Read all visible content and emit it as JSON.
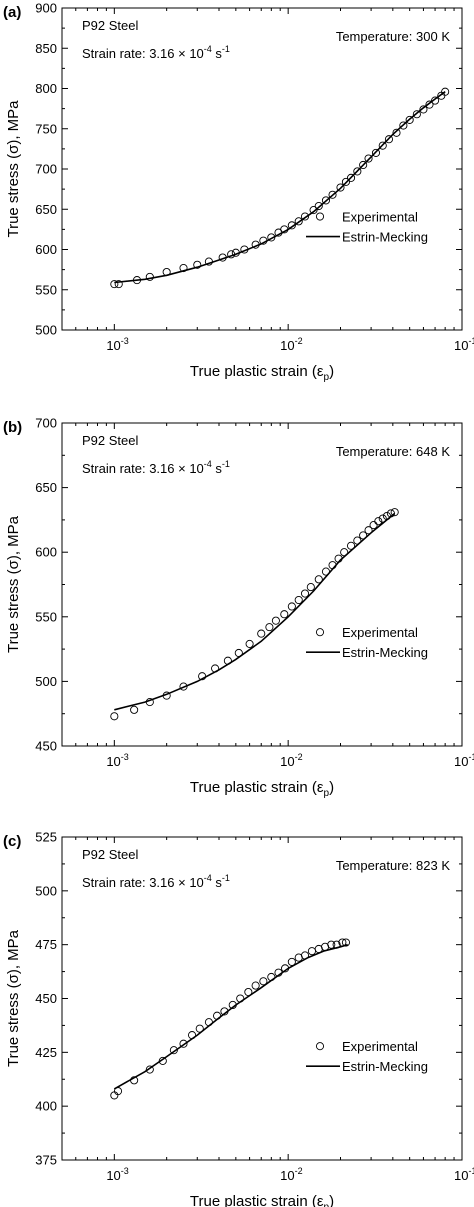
{
  "figure": {
    "panels": [
      {
        "label": "(a)",
        "material": "P92 Steel",
        "rate_prefix": "Strain rate: 3.16 × 10",
        "rate_exp": "-4",
        "rate_unit": " s",
        "rate_unit_exp": "-1",
        "temperature": "Temperature: 300 K",
        "ylabel": "True stress (σ), MPa",
        "xlabel_main": "True plastic strain (ε",
        "xlabel_sub": "p",
        "xlabel_close": ")",
        "y_ticks": [
          "500",
          "550",
          "600",
          "650",
          "700",
          "750",
          "800",
          "850",
          "900"
        ],
        "x_tick_base": "10",
        "x_tick_exps": [
          "-3",
          "-2",
          "-1"
        ],
        "legend_experimental": "Experimental",
        "legend_model": "Estrin-Mecking"
      },
      {
        "label": "(b)",
        "material": "P92 Steel",
        "rate_prefix": "Strain rate: 3.16 × 10",
        "rate_exp": "-4",
        "rate_unit": " s",
        "rate_unit_exp": "-1",
        "temperature": "Temperature: 648 K",
        "ylabel": "True stress (σ), MPa",
        "xlabel_main": "True plastic strain (ε",
        "xlabel_sub": "p",
        "xlabel_close": ")",
        "y_ticks": [
          "450",
          "500",
          "550",
          "600",
          "650",
          "700"
        ],
        "x_tick_base": "10",
        "x_tick_exps": [
          "-3",
          "-2",
          "-1"
        ],
        "legend_experimental": "Experimental",
        "legend_model": "Estrin-Mecking"
      },
      {
        "label": "(c)",
        "material": "P92 Steel",
        "rate_prefix": "Strain rate: 3.16 × 10",
        "rate_exp": "-4",
        "rate_unit": " s",
        "rate_unit_exp": "-1",
        "temperature": "Temperature: 823 K",
        "ylabel": "True stress (σ), MPa",
        "xlabel_main": "True plastic strain (ε",
        "xlabel_sub": "p",
        "xlabel_close": ")",
        "y_ticks": [
          "375",
          "400",
          "425",
          "450",
          "475",
          "500",
          "525"
        ],
        "x_tick_base": "10",
        "x_tick_exps": [
          "-3",
          "-2",
          "-1"
        ],
        "legend_experimental": "Experimental",
        "legend_model": "Estrin-Mecking"
      }
    ]
  },
  "chart_data": [
    {
      "type": "scatter",
      "xscale": "log",
      "xlim": [
        0.0005,
        0.1
      ],
      "ylim": [
        500,
        900
      ],
      "legend_position": "center-right",
      "series": [
        {
          "name": "Experimental",
          "marker": "open-circle",
          "x": [
            0.001,
            0.00106,
            0.00135,
            0.0016,
            0.002,
            0.0025,
            0.003,
            0.0035,
            0.0042,
            0.0047,
            0.005,
            0.0056,
            0.0065,
            0.0072,
            0.008,
            0.0088,
            0.0095,
            0.0105,
            0.0115,
            0.0125,
            0.014,
            0.015,
            0.0165,
            0.018,
            0.02,
            0.0215,
            0.023,
            0.025,
            0.027,
            0.029,
            0.032,
            0.035,
            0.038,
            0.042,
            0.046,
            0.05,
            0.055,
            0.06,
            0.065,
            0.07,
            0.076,
            0.08
          ],
          "y": [
            557,
            557,
            562,
            566,
            572,
            577,
            581,
            585,
            590,
            594,
            596,
            600,
            606,
            611,
            615,
            621,
            625,
            630,
            635,
            641,
            649,
            654,
            661,
            668,
            677,
            684,
            689,
            697,
            705,
            713,
            720,
            729,
            737,
            745,
            754,
            761,
            768,
            774,
            780,
            785,
            791,
            796
          ]
        },
        {
          "name": "Estrin-Mecking",
          "marker": "line",
          "x": [
            0.001,
            0.0015,
            0.002,
            0.003,
            0.004,
            0.005,
            0.007,
            0.01,
            0.014,
            0.02,
            0.03,
            0.04,
            0.05,
            0.06,
            0.07,
            0.08
          ],
          "y": [
            559,
            563,
            568,
            578,
            587,
            594,
            607,
            625,
            647,
            676,
            715,
            743,
            762,
            776,
            787,
            796
          ]
        }
      ]
    },
    {
      "type": "scatter",
      "xscale": "log",
      "xlim": [
        0.0005,
        0.1
      ],
      "ylim": [
        450,
        700
      ],
      "legend_position": "center-right",
      "series": [
        {
          "name": "Experimental",
          "marker": "open-circle",
          "x": [
            0.001,
            0.0013,
            0.0016,
            0.002,
            0.0025,
            0.0032,
            0.0038,
            0.0045,
            0.0052,
            0.006,
            0.007,
            0.0078,
            0.0085,
            0.0095,
            0.0105,
            0.0115,
            0.0125,
            0.0135,
            0.015,
            0.0165,
            0.018,
            0.0195,
            0.021,
            0.023,
            0.025,
            0.027,
            0.029,
            0.031,
            0.033,
            0.035,
            0.037,
            0.039,
            0.041
          ],
          "y": [
            473,
            478,
            484,
            489,
            496,
            504,
            510,
            516,
            522,
            529,
            537,
            542,
            547,
            552,
            558,
            563,
            568,
            573,
            579,
            585,
            590,
            595,
            600,
            605,
            609,
            613,
            617,
            621,
            624,
            626,
            628,
            630,
            631
          ]
        },
        {
          "name": "Estrin-Mecking",
          "marker": "line",
          "x": [
            0.001,
            0.0015,
            0.002,
            0.003,
            0.004,
            0.005,
            0.007,
            0.01,
            0.014,
            0.02,
            0.03,
            0.041
          ],
          "y": [
            478,
            484,
            490,
            500,
            509,
            517,
            531,
            550,
            570,
            594,
            615,
            630
          ]
        }
      ]
    },
    {
      "type": "scatter",
      "xscale": "log",
      "xlim": [
        0.0005,
        0.1
      ],
      "ylim": [
        375,
        525
      ],
      "legend_position": "center-right",
      "series": [
        {
          "name": "Experimental",
          "marker": "open-circle",
          "x": [
            0.001,
            0.00105,
            0.0013,
            0.0016,
            0.0019,
            0.0022,
            0.0025,
            0.0028,
            0.0031,
            0.0035,
            0.0039,
            0.0043,
            0.0048,
            0.0053,
            0.0059,
            0.0065,
            0.0072,
            0.008,
            0.0088,
            0.0096,
            0.0105,
            0.0115,
            0.0125,
            0.0137,
            0.015,
            0.0163,
            0.0177,
            0.019,
            0.0205,
            0.0215
          ],
          "y": [
            405,
            407,
            412,
            417,
            421,
            426,
            429,
            433,
            436,
            439,
            442,
            444,
            447,
            450,
            453,
            456,
            458,
            460,
            462,
            464,
            467,
            469,
            470,
            472,
            473,
            474,
            475,
            475,
            476,
            476
          ]
        },
        {
          "name": "Estrin-Mecking",
          "marker": "line",
          "x": [
            0.001,
            0.0015,
            0.002,
            0.003,
            0.004,
            0.005,
            0.007,
            0.01,
            0.013,
            0.016,
            0.02,
            0.022
          ],
          "y": [
            408,
            416,
            423,
            433,
            441,
            447,
            455,
            464,
            469,
            472,
            474,
            475
          ]
        }
      ]
    }
  ]
}
